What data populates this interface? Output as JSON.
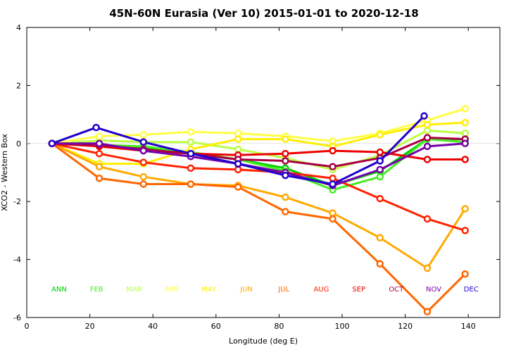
{
  "chart_data": {
    "type": "line",
    "title": "45N-60N Eurasia (Ver 10)   2015-01-01 to 2020-12-18",
    "xlabel": "Longitude (deg E)",
    "ylabel": "XCO2 - Western Box",
    "xlim": [
      0,
      150
    ],
    "ylim": [
      -6,
      4
    ],
    "xticks": [
      0,
      20,
      40,
      60,
      80,
      100,
      120,
      140
    ],
    "yticks": [
      -6,
      -4,
      -2,
      0,
      2,
      4
    ],
    "series": [
      {
        "name": "ANN",
        "color": "#00cc00",
        "x": [
          8,
          23,
          37,
          52,
          67,
          82,
          97,
          112,
          127,
          139
        ],
        "y": [
          0.0,
          -0.05,
          -0.15,
          -0.35,
          -0.55,
          -0.85,
          -1.45,
          -0.95,
          0.15,
          0.15
        ]
      },
      {
        "name": "FEB",
        "color": "#44ee22",
        "x": [
          8,
          23,
          37,
          52,
          67,
          82,
          97,
          112,
          127,
          139
        ],
        "y": [
          0.0,
          -0.05,
          -0.1,
          -0.3,
          -0.55,
          -0.95,
          -1.6,
          -1.15,
          0.15,
          0.05
        ]
      },
      {
        "name": "MAR",
        "color": "#bbff44",
        "x": [
          8,
          23,
          37,
          52,
          67,
          82,
          97,
          112,
          127,
          139
        ],
        "y": [
          0.0,
          0.1,
          0.05,
          0.05,
          -0.2,
          -0.5,
          -0.9,
          -0.4,
          0.45,
          0.35
        ]
      },
      {
        "name": "APR",
        "color": "#ffff44",
        "x": [
          8,
          23,
          37,
          52,
          67,
          82,
          97,
          112,
          127,
          139
        ],
        "y": [
          0.0,
          0.25,
          0.3,
          0.4,
          0.35,
          0.25,
          0.08,
          0.35,
          0.8,
          1.2
        ]
      },
      {
        "name": "MAY",
        "color": "#ffee00",
        "x": [
          8,
          23,
          37,
          52,
          67,
          82,
          97,
          112,
          127,
          139
        ],
        "y": [
          0.0,
          -0.7,
          -0.7,
          -0.2,
          0.15,
          0.15,
          -0.1,
          0.3,
          0.65,
          0.72
        ]
      },
      {
        "name": "JUN",
        "color": "#ffaa00",
        "x": [
          8,
          23,
          37,
          52,
          67,
          82,
          97,
          112,
          127,
          139
        ],
        "y": [
          0.0,
          -0.8,
          -1.15,
          -1.4,
          -1.45,
          -1.85,
          -2.4,
          -3.25,
          -4.3,
          -2.25
        ]
      },
      {
        "name": "JUL",
        "color": "#ff6600",
        "x": [
          8,
          23,
          37,
          52,
          67,
          82,
          97,
          112,
          127,
          139
        ],
        "y": [
          0.0,
          -1.2,
          -1.4,
          -1.4,
          -1.5,
          -2.35,
          -2.6,
          -4.15,
          -5.8,
          -4.5
        ]
      },
      {
        "name": "AUG",
        "color": "#ff2200",
        "x": [
          8,
          23,
          37,
          52,
          67,
          82,
          97,
          112,
          127,
          139
        ],
        "y": [
          0.0,
          -0.35,
          -0.65,
          -0.85,
          -0.9,
          -1.0,
          -1.2,
          -1.9,
          -2.6,
          -3.0
        ]
      },
      {
        "name": "SEP",
        "color": "#ee0000",
        "x": [
          8,
          23,
          37,
          52,
          67,
          82,
          97,
          112,
          127,
          139
        ],
        "y": [
          0.0,
          -0.1,
          -0.25,
          -0.35,
          -0.4,
          -0.35,
          -0.25,
          -0.3,
          -0.55,
          -0.55
        ]
      },
      {
        "name": "OCT",
        "color": "#aa0044",
        "x": [
          8,
          23,
          37,
          52,
          67,
          82,
          97,
          112,
          127,
          139
        ],
        "y": [
          0.0,
          -0.05,
          -0.2,
          -0.35,
          -0.55,
          -0.6,
          -0.8,
          -0.5,
          0.2,
          0.15
        ]
      },
      {
        "name": "NOV",
        "color": "#7700aa",
        "x": [
          8,
          23,
          37,
          52,
          67,
          82,
          97,
          112,
          127,
          139
        ],
        "y": [
          0.0,
          0.0,
          -0.25,
          -0.45,
          -0.7,
          -1.0,
          -1.45,
          -0.9,
          -0.1,
          0.0
        ]
      },
      {
        "name": "DEC",
        "color": "#2200cc",
        "x": [
          8,
          22,
          37,
          52,
          67,
          82,
          97,
          112,
          126
        ],
        "y": [
          0.0,
          0.55,
          0.05,
          -0.35,
          -0.7,
          -1.1,
          -1.4,
          -0.6,
          0.95
        ]
      }
    ]
  }
}
